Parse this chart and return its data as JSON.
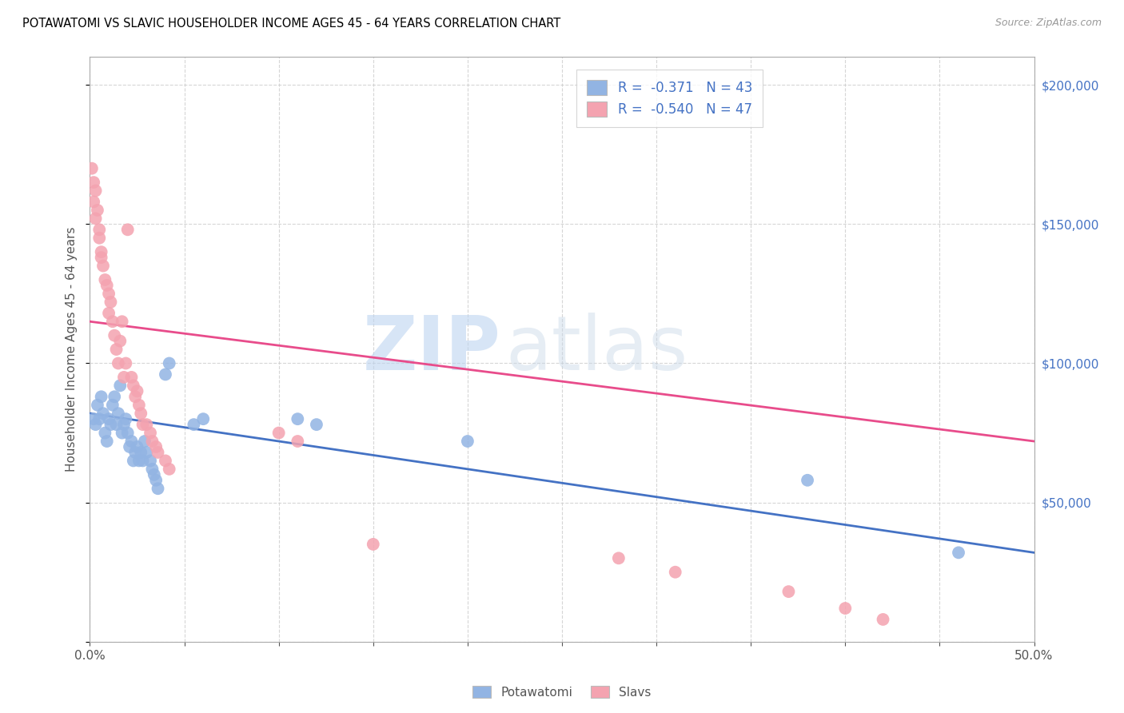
{
  "title": "POTAWATOMI VS SLAVIC HOUSEHOLDER INCOME AGES 45 - 64 YEARS CORRELATION CHART",
  "source": "Source: ZipAtlas.com",
  "ylabel": "Householder Income Ages 45 - 64 years",
  "xlim": [
    0,
    0.5
  ],
  "ylim": [
    0,
    210000
  ],
  "xticks": [
    0.0,
    0.05,
    0.1,
    0.15,
    0.2,
    0.25,
    0.3,
    0.35,
    0.4,
    0.45,
    0.5
  ],
  "xticklabels": [
    "0.0%",
    "",
    "",
    "",
    "",
    "",
    "",
    "",
    "",
    "",
    "50.0%"
  ],
  "ytick_positions": [
    0,
    50000,
    100000,
    150000,
    200000
  ],
  "ytick_labels": [
    "",
    "$50,000",
    "$100,000",
    "$150,000",
    "$200,000"
  ],
  "legend_blue_r": "-0.371",
  "legend_blue_n": "43",
  "legend_pink_r": "-0.540",
  "legend_pink_n": "47",
  "watermark_zip": "ZIP",
  "watermark_atlas": "atlas",
  "blue_color": "#92b4e3",
  "pink_color": "#f4a3b0",
  "blue_line_color": "#4472c4",
  "pink_line_color": "#e84c8b",
  "blue_scatter": [
    [
      0.002,
      80000
    ],
    [
      0.003,
      78000
    ],
    [
      0.004,
      85000
    ],
    [
      0.005,
      80000
    ],
    [
      0.006,
      88000
    ],
    [
      0.007,
      82000
    ],
    [
      0.008,
      75000
    ],
    [
      0.009,
      72000
    ],
    [
      0.01,
      80000
    ],
    [
      0.011,
      78000
    ],
    [
      0.012,
      85000
    ],
    [
      0.013,
      88000
    ],
    [
      0.014,
      78000
    ],
    [
      0.015,
      82000
    ],
    [
      0.016,
      92000
    ],
    [
      0.017,
      75000
    ],
    [
      0.018,
      78000
    ],
    [
      0.019,
      80000
    ],
    [
      0.02,
      75000
    ],
    [
      0.021,
      70000
    ],
    [
      0.022,
      72000
    ],
    [
      0.023,
      65000
    ],
    [
      0.024,
      68000
    ],
    [
      0.025,
      70000
    ],
    [
      0.026,
      65000
    ],
    [
      0.027,
      68000
    ],
    [
      0.028,
      65000
    ],
    [
      0.029,
      72000
    ],
    [
      0.03,
      68000
    ],
    [
      0.032,
      65000
    ],
    [
      0.033,
      62000
    ],
    [
      0.034,
      60000
    ],
    [
      0.035,
      58000
    ],
    [
      0.036,
      55000
    ],
    [
      0.04,
      96000
    ],
    [
      0.042,
      100000
    ],
    [
      0.055,
      78000
    ],
    [
      0.06,
      80000
    ],
    [
      0.11,
      80000
    ],
    [
      0.12,
      78000
    ],
    [
      0.2,
      72000
    ],
    [
      0.38,
      58000
    ],
    [
      0.46,
      32000
    ]
  ],
  "pink_scatter": [
    [
      0.001,
      170000
    ],
    [
      0.002,
      165000
    ],
    [
      0.002,
      158000
    ],
    [
      0.003,
      162000
    ],
    [
      0.003,
      152000
    ],
    [
      0.004,
      155000
    ],
    [
      0.005,
      148000
    ],
    [
      0.005,
      145000
    ],
    [
      0.006,
      140000
    ],
    [
      0.006,
      138000
    ],
    [
      0.007,
      135000
    ],
    [
      0.008,
      130000
    ],
    [
      0.009,
      128000
    ],
    [
      0.01,
      125000
    ],
    [
      0.01,
      118000
    ],
    [
      0.011,
      122000
    ],
    [
      0.012,
      115000
    ],
    [
      0.013,
      110000
    ],
    [
      0.014,
      105000
    ],
    [
      0.015,
      100000
    ],
    [
      0.016,
      108000
    ],
    [
      0.017,
      115000
    ],
    [
      0.018,
      95000
    ],
    [
      0.019,
      100000
    ],
    [
      0.02,
      148000
    ],
    [
      0.022,
      95000
    ],
    [
      0.023,
      92000
    ],
    [
      0.024,
      88000
    ],
    [
      0.025,
      90000
    ],
    [
      0.026,
      85000
    ],
    [
      0.027,
      82000
    ],
    [
      0.028,
      78000
    ],
    [
      0.03,
      78000
    ],
    [
      0.032,
      75000
    ],
    [
      0.033,
      72000
    ],
    [
      0.035,
      70000
    ],
    [
      0.036,
      68000
    ],
    [
      0.04,
      65000
    ],
    [
      0.042,
      62000
    ],
    [
      0.1,
      75000
    ],
    [
      0.11,
      72000
    ],
    [
      0.15,
      35000
    ],
    [
      0.28,
      30000
    ],
    [
      0.31,
      25000
    ],
    [
      0.37,
      18000
    ],
    [
      0.4,
      12000
    ],
    [
      0.42,
      8000
    ]
  ],
  "blue_line": [
    [
      0.0,
      82000
    ],
    [
      0.5,
      32000
    ]
  ],
  "pink_line": [
    [
      0.0,
      115000
    ],
    [
      0.5,
      72000
    ]
  ]
}
